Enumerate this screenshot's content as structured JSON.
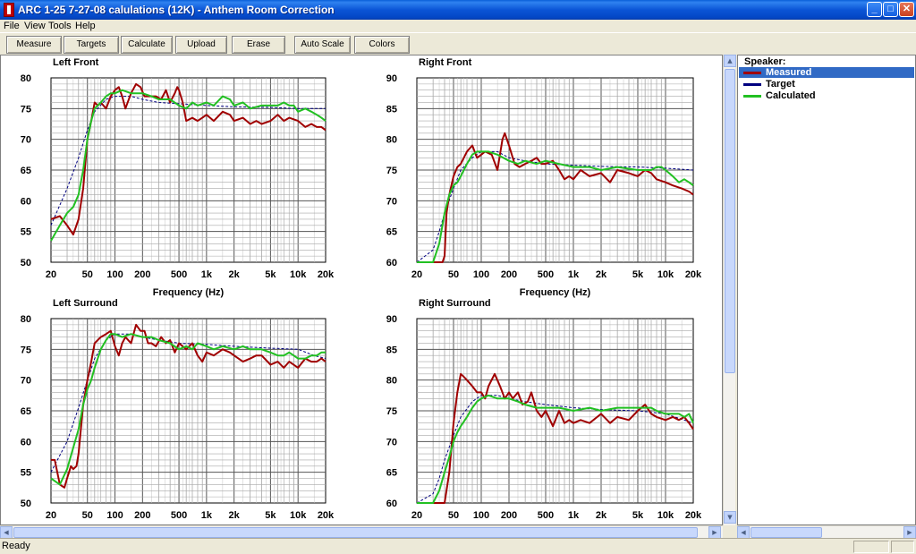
{
  "window": {
    "title": "ARC 1-25 7-27-08 calulations (12K) - Anthem Room Correction",
    "controls": {
      "minimize": "_",
      "maximize": "□",
      "close": "✕"
    }
  },
  "menu": {
    "items": [
      "File",
      "View",
      "Tools",
      "Help"
    ]
  },
  "toolbar": {
    "buttons": [
      "Measure",
      "Targets",
      "Calculate",
      "Upload",
      "Erase",
      "Auto Scale",
      "Colors"
    ]
  },
  "legend": {
    "title": "Speaker:",
    "items": [
      {
        "label": "Measured",
        "color": "#a00000",
        "selected": true
      },
      {
        "label": "Target",
        "color": "#000080",
        "selected": false
      },
      {
        "label": "Calculated",
        "color": "#22c022",
        "selected": false
      }
    ]
  },
  "status": {
    "text": "Ready"
  },
  "chart_data": [
    {
      "type": "line",
      "title": "Left Front",
      "xlabel": "Frequency (Hz)",
      "xscale": "log",
      "xlim": [
        20,
        20000
      ],
      "ylim": [
        50,
        80
      ],
      "xticks": [
        "20",
        "50",
        "100",
        "200",
        "500",
        "1k",
        "2k",
        "5k",
        "10k",
        "20k"
      ],
      "yticks": [
        "50",
        "55",
        "60",
        "65",
        "70",
        "75",
        "80"
      ],
      "series": [
        {
          "name": "Measured",
          "color": "#a00000",
          "x": [
            20,
            25,
            30,
            35,
            40,
            45,
            50,
            55,
            60,
            65,
            70,
            80,
            90,
            100,
            110,
            120,
            130,
            150,
            170,
            190,
            210,
            230,
            250,
            280,
            320,
            360,
            400,
            450,
            480,
            500,
            550,
            600,
            700,
            800,
            900,
            1000,
            1200,
            1500,
            1800,
            2000,
            2500,
            3000,
            3500,
            4000,
            5000,
            6000,
            7000,
            8000,
            10000,
            12000,
            14000,
            16000,
            18000,
            20000
          ],
          "y": [
            57,
            57.5,
            56,
            54.5,
            57,
            62,
            70,
            73,
            76,
            75.5,
            76,
            75,
            77,
            78,
            78.5,
            77,
            75,
            77.5,
            79,
            78.5,
            77,
            77,
            77,
            77,
            76.5,
            78,
            76,
            77.5,
            78.5,
            78,
            76,
            73,
            73.5,
            73,
            73.5,
            74,
            73,
            74.5,
            74,
            73,
            73.5,
            72.5,
            73,
            72.5,
            73,
            74,
            73,
            73.5,
            73,
            72,
            72.5,
            72,
            72,
            71.5
          ]
        },
        {
          "name": "Target",
          "color": "#000080",
          "x": [
            20,
            30,
            40,
            50,
            60,
            80,
            100,
            150,
            200,
            300,
            500,
            1000,
            2000,
            5000,
            10000,
            15000,
            20000
          ],
          "y": [
            56,
            62,
            67,
            71.5,
            74.5,
            76.5,
            77,
            77,
            76.5,
            76,
            75.8,
            75.5,
            75.3,
            75.2,
            75,
            75,
            75
          ]
        },
        {
          "name": "Calculated",
          "color": "#22c022",
          "x": [
            20,
            25,
            30,
            35,
            40,
            45,
            50,
            55,
            60,
            70,
            80,
            90,
            100,
            120,
            150,
            200,
            250,
            300,
            400,
            500,
            600,
            700,
            800,
            1000,
            1200,
            1500,
            1800,
            2000,
            2500,
            3000,
            4000,
            5000,
            6000,
            7000,
            8000,
            9000,
            10000,
            12000,
            14000,
            16000,
            18000,
            20000
          ],
          "y": [
            53.5,
            56,
            58,
            59,
            61,
            65,
            70,
            73,
            75,
            76,
            77,
            77.5,
            77.5,
            78,
            77.5,
            77.5,
            77,
            76.5,
            76.5,
            75.5,
            75,
            76,
            75.5,
            76,
            75.5,
            77,
            76.5,
            75.5,
            76,
            75,
            75.5,
            75.5,
            75.5,
            76,
            75.5,
            75.5,
            74.5,
            75,
            74.5,
            74,
            73.5,
            73
          ]
        }
      ]
    },
    {
      "type": "line",
      "title": "Right Front",
      "xlabel": "Frequency (Hz)",
      "xscale": "log",
      "xlim": [
        20,
        20000
      ],
      "ylim": [
        60,
        90
      ],
      "xticks": [
        "20",
        "50",
        "100",
        "200",
        "500",
        "1k",
        "2k",
        "5k",
        "10k",
        "20k"
      ],
      "yticks": [
        "60",
        "65",
        "70",
        "75",
        "80",
        "85",
        "90"
      ],
      "series": [
        {
          "name": "Measured",
          "color": "#a00000",
          "x": [
            20,
            30,
            35,
            38,
            40,
            42,
            45,
            50,
            55,
            60,
            70,
            80,
            90,
            100,
            110,
            130,
            150,
            170,
            180,
            200,
            230,
            260,
            300,
            350,
            400,
            450,
            500,
            600,
            700,
            800,
            900,
            1000,
            1200,
            1500,
            2000,
            2500,
            3000,
            4000,
            5000,
            6000,
            7000,
            8000,
            10000,
            12000,
            15000,
            18000,
            20000
          ],
          "y": [
            60,
            60,
            60,
            60,
            61,
            68,
            71,
            74,
            75.5,
            76,
            78,
            79,
            77,
            77.5,
            78,
            77.5,
            75,
            80,
            81,
            79,
            76,
            75.5,
            76,
            76.5,
            77,
            76,
            76,
            76.5,
            75,
            73.5,
            74,
            73.5,
            75,
            74,
            74.5,
            73,
            75,
            74.5,
            74,
            75,
            74.5,
            73.5,
            73,
            72.5,
            72,
            71.5,
            71
          ]
        },
        {
          "name": "Target",
          "color": "#000080",
          "x": [
            20,
            30,
            35,
            40,
            50,
            60,
            80,
            100,
            150,
            200,
            300,
            500,
            1000,
            2000,
            5000,
            10000,
            20000
          ],
          "y": [
            60,
            62,
            65,
            68,
            72,
            75,
            77,
            78,
            78,
            77,
            76.5,
            76,
            75.8,
            75.6,
            75.5,
            75.3,
            75
          ]
        },
        {
          "name": "Calculated",
          "color": "#22c022",
          "x": [
            20,
            30,
            35,
            40,
            45,
            50,
            55,
            60,
            70,
            80,
            90,
            100,
            120,
            150,
            200,
            250,
            300,
            400,
            500,
            700,
            1000,
            1500,
            2000,
            3000,
            5000,
            7000,
            8000,
            9000,
            10000,
            12000,
            14000,
            16000,
            18000,
            20000
          ],
          "y": [
            60,
            60,
            63,
            68,
            71,
            72.5,
            73,
            74,
            76,
            77.5,
            78,
            78,
            78,
            77.5,
            76.5,
            76,
            76.5,
            76,
            76.5,
            76,
            75.5,
            75.5,
            75,
            75.5,
            75,
            75,
            75.5,
            75.5,
            75,
            74,
            73,
            73.5,
            73,
            72.5
          ]
        }
      ]
    },
    {
      "type": "line",
      "title": "Left Surround",
      "xlabel": "",
      "xscale": "log",
      "xlim": [
        20,
        20000
      ],
      "ylim": [
        50,
        80
      ],
      "xticks": [
        "20",
        "50",
        "100",
        "200",
        "500",
        "1k",
        "2k",
        "5k",
        "10k",
        "20k"
      ],
      "yticks": [
        "50",
        "55",
        "60",
        "65",
        "70",
        "75",
        "80"
      ],
      "series": [
        {
          "name": "Measured",
          "color": "#a00000",
          "x": [
            20,
            22,
            25,
            28,
            30,
            33,
            35,
            38,
            40,
            45,
            50,
            55,
            60,
            70,
            80,
            90,
            100,
            110,
            120,
            130,
            150,
            170,
            190,
            210,
            230,
            250,
            280,
            320,
            360,
            400,
            450,
            500,
            600,
            700,
            800,
            900,
            1000,
            1200,
            1500,
            1800,
            2000,
            2500,
            3000,
            3500,
            4000,
            5000,
            6000,
            7000,
            8000,
            10000,
            12000,
            14000,
            16000,
            18000,
            20000
          ],
          "y": [
            57,
            57,
            53,
            52.5,
            54,
            56,
            55.5,
            56,
            58,
            66,
            70,
            73,
            76,
            77,
            77.5,
            78,
            75.5,
            74,
            76,
            77,
            76,
            79,
            78,
            78,
            76,
            76,
            75.5,
            77,
            76,
            76.5,
            74.5,
            76,
            75,
            76,
            74,
            73,
            74.5,
            74,
            75,
            74.5,
            74,
            73,
            73.5,
            74,
            74,
            72.5,
            73,
            72,
            73,
            72,
            73.5,
            73,
            73,
            73.5,
            73
          ]
        },
        {
          "name": "Target",
          "color": "#000080",
          "x": [
            20,
            30,
            40,
            50,
            60,
            80,
            100,
            150,
            200,
            300,
            500,
            1000,
            2000,
            5000,
            10000,
            15000,
            20000
          ],
          "y": [
            55,
            60,
            65.5,
            70,
            73.5,
            76.5,
            77.5,
            77.5,
            77,
            76.5,
            76,
            75.8,
            75.5,
            75.2,
            75,
            74,
            73.5
          ]
        },
        {
          "name": "Calculated",
          "color": "#22c022",
          "x": [
            20,
            25,
            30,
            35,
            40,
            45,
            50,
            55,
            60,
            70,
            80,
            90,
            100,
            120,
            150,
            200,
            250,
            300,
            400,
            500,
            600,
            700,
            800,
            1000,
            1200,
            1500,
            2000,
            2500,
            3000,
            4000,
            5000,
            6000,
            7000,
            8000,
            10000,
            12000,
            14000,
            16000,
            18000,
            20000
          ],
          "y": [
            54,
            53,
            55.5,
            59,
            62,
            66,
            68.5,
            70,
            72,
            75,
            76.5,
            77.5,
            77.5,
            77,
            77.5,
            77,
            77,
            76.5,
            76,
            75,
            75.5,
            75,
            76,
            75.5,
            75,
            75.5,
            75,
            75.5,
            75,
            75,
            74.5,
            74,
            74,
            74.5,
            73.5,
            73.5,
            74,
            74,
            74.5,
            74.5
          ]
        }
      ]
    },
    {
      "type": "line",
      "title": "Right Surround",
      "xlabel": "",
      "xscale": "log",
      "xlim": [
        20,
        20000
      ],
      "ylim": [
        60,
        90
      ],
      "xticks": [
        "20",
        "50",
        "100",
        "200",
        "500",
        "1k",
        "2k",
        "5k",
        "10k",
        "20k"
      ],
      "yticks": [
        "60",
        "65",
        "70",
        "75",
        "80",
        "85",
        "90"
      ],
      "series": [
        {
          "name": "Measured",
          "color": "#a00000",
          "x": [
            20,
            30,
            35,
            38,
            40,
            45,
            50,
            55,
            60,
            65,
            70,
            80,
            90,
            100,
            110,
            120,
            140,
            160,
            180,
            200,
            220,
            250,
            280,
            320,
            350,
            400,
            450,
            500,
            600,
            700,
            800,
            900,
            1000,
            1200,
            1500,
            2000,
            2500,
            3000,
            4000,
            5000,
            6000,
            7000,
            8000,
            10000,
            12000,
            14000,
            16000,
            18000,
            20000
          ],
          "y": [
            60,
            60,
            60,
            60,
            60,
            65,
            73,
            78,
            81,
            80.5,
            80,
            79,
            78,
            78,
            77,
            79,
            81,
            79,
            77,
            78,
            77,
            78,
            76,
            76.5,
            78,
            75,
            74,
            75,
            72.5,
            75,
            73,
            73.5,
            73,
            73.5,
            73,
            74.5,
            73,
            74,
            73.5,
            75,
            76,
            74.5,
            74,
            73.5,
            74,
            73.5,
            74,
            73,
            72
          ]
        },
        {
          "name": "Target",
          "color": "#000080",
          "x": [
            20,
            30,
            35,
            40,
            50,
            60,
            80,
            100,
            150,
            200,
            300,
            500,
            1000,
            2000,
            5000,
            10000,
            20000
          ],
          "y": [
            60,
            61.5,
            64,
            67,
            71,
            74,
            76.5,
            77.5,
            77.5,
            77,
            76.5,
            76,
            75.5,
            75.2,
            75,
            74.5,
            73
          ]
        },
        {
          "name": "Calculated",
          "color": "#22c022",
          "x": [
            20,
            30,
            35,
            40,
            45,
            50,
            55,
            60,
            70,
            80,
            90,
            100,
            120,
            150,
            200,
            250,
            300,
            400,
            500,
            700,
            1000,
            1500,
            2000,
            3000,
            5000,
            7000,
            8000,
            10000,
            12000,
            14000,
            16000,
            18000,
            20000
          ],
          "y": [
            60,
            60,
            62,
            65,
            67.5,
            70,
            71.5,
            72.5,
            74,
            75.5,
            76.5,
            77,
            77.5,
            77,
            77,
            76.5,
            76,
            75.5,
            75.5,
            75.5,
            75,
            75.5,
            75,
            75.5,
            75.5,
            75.5,
            75,
            74.5,
            74.5,
            74.5,
            74,
            74.5,
            73
          ]
        }
      ]
    }
  ]
}
